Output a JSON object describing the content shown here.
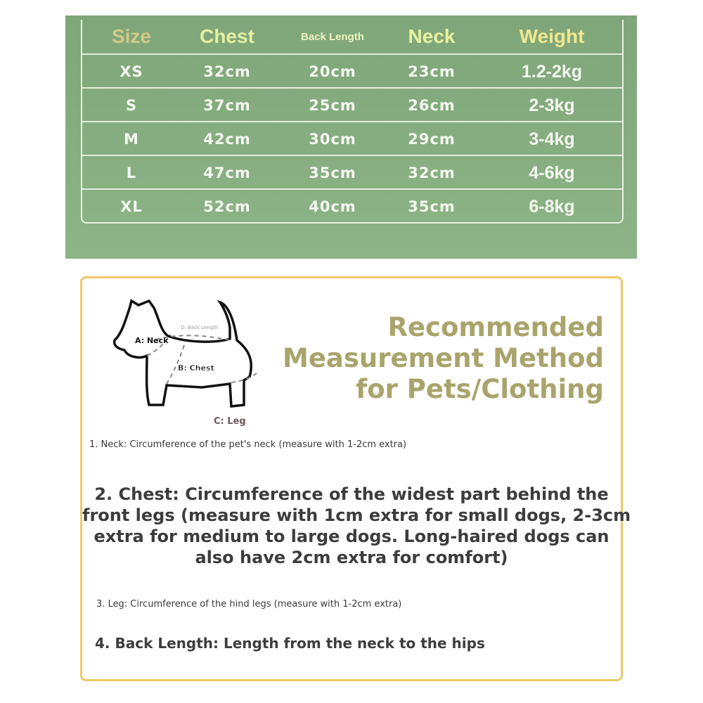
{
  "size_table": {
    "headers": [
      "Size",
      "Chest",
      "Back Length",
      "Neck",
      "Weight"
    ],
    "header_colors": [
      "#d3c98a",
      "#e6efa2",
      "#eef3c0",
      "#eaf2a0",
      "#f1e78e"
    ],
    "rows": [
      [
        "XS",
        "32cm",
        "20cm",
        "23cm",
        "1.2-2kg"
      ],
      [
        "S",
        "37cm",
        "25cm",
        "26cm",
        "2-3kg"
      ],
      [
        "M",
        "42cm",
        "30cm",
        "29cm",
        "3-4kg"
      ],
      [
        "L",
        "47cm",
        "35cm",
        "32cm",
        "4-6kg"
      ],
      [
        "XL",
        "52cm",
        "40cm",
        "35cm",
        "6-8kg"
      ]
    ]
  },
  "diagram": {
    "labels": {
      "neck": "A: Neck",
      "chest": "B: Chest",
      "leg": "C: Leg",
      "back": "D: Back Length"
    }
  },
  "guide": {
    "title_lines": [
      "Recommended",
      "Measurement Method",
      "for Pets/Clothing"
    ],
    "step1": "1. Neck: Circumference of the pet's neck (measure with 1-2cm extra)",
    "step2_lines": [
      "2. Chest: Circumference of the widest part behind the",
      "front legs (measure with 1cm extra for small dogs, 2-3cm",
      "extra for medium to large dogs. Long-haired dogs can",
      "also have 2cm extra for comfort)"
    ],
    "step3": "3. Leg: Circumference of the hind legs (measure with 1-2cm extra)",
    "step4": "4. Back Length: Length from the neck to the hips"
  }
}
